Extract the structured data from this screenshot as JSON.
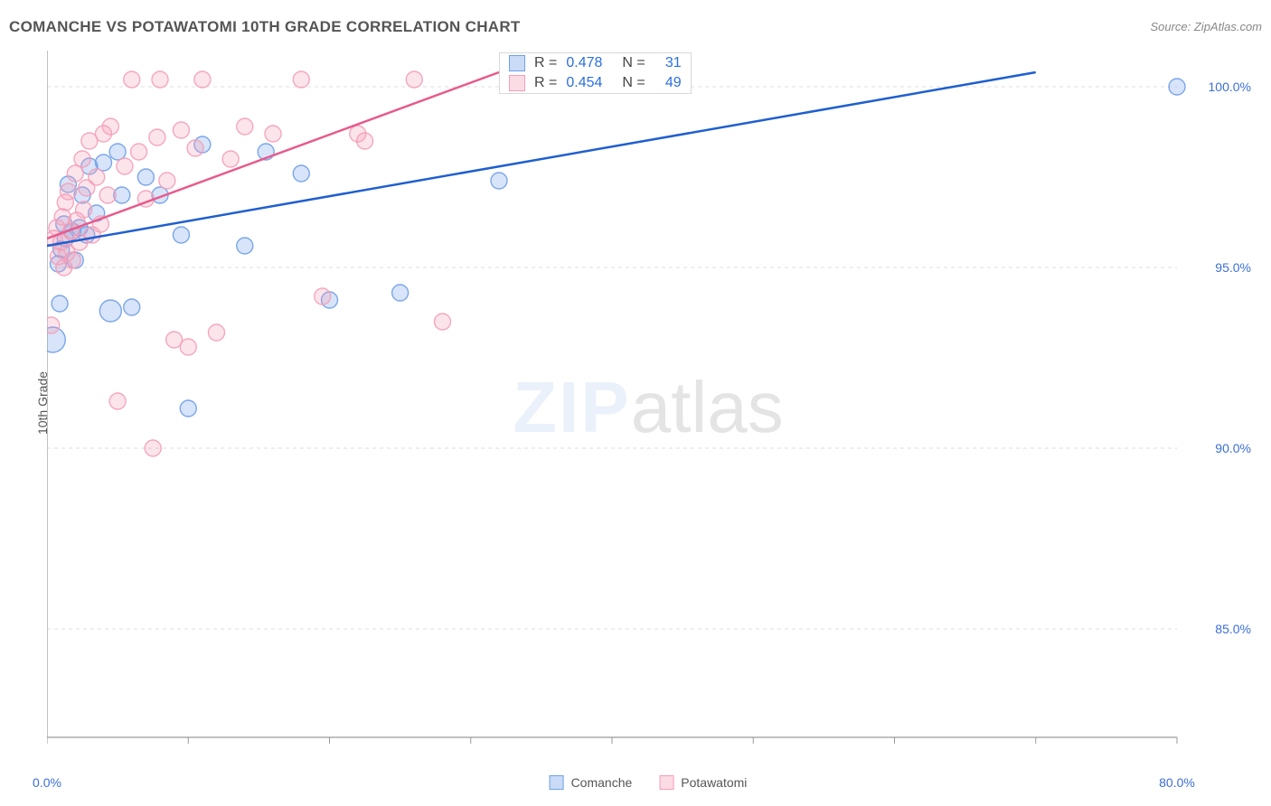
{
  "title": "COMANCHE VS POTAWATOMI 10TH GRADE CORRELATION CHART",
  "source": "Source: ZipAtlas.com",
  "ylabel": "10th Grade",
  "watermark_primary": "ZIP",
  "watermark_secondary": "atlas",
  "chart": {
    "type": "scatter",
    "background_color": "#ffffff",
    "grid_color": "#dcdcdc",
    "axis_color": "#9a9a9a",
    "label_color": "#3b6fd6",
    "xlim": [
      0,
      80
    ],
    "ylim": [
      82,
      101
    ],
    "xticks": [
      0,
      10,
      20,
      30,
      40,
      50,
      60,
      70,
      80
    ],
    "xticks_labeled": [
      0,
      80
    ],
    "xtick_labels": {
      "0": "0.0%",
      "80": "80.0%"
    },
    "yticks": [
      85,
      90,
      95,
      100
    ],
    "ytick_labels": {
      "85": "85.0%",
      "90": "90.0%",
      "95": "95.0%",
      "100": "100.0%"
    },
    "marker_radius": 9,
    "marker_fill_opacity": 0.28,
    "marker_stroke_opacity": 0.9,
    "line_width": 2.5,
    "font_size_labels": 14,
    "font_size_title": 17
  },
  "series": [
    {
      "name": "Comanche",
      "color": "#6f9fe8",
      "line_color": "#1f5fd0",
      "R": "0.478",
      "N": "31",
      "trend": {
        "x1": 0,
        "y1": 95.6,
        "x2": 70,
        "y2": 100.4
      },
      "points": [
        [
          0.4,
          93.0,
          14
        ],
        [
          0.8,
          95.1,
          9
        ],
        [
          0.9,
          94.0,
          9
        ],
        [
          1.0,
          95.5,
          9
        ],
        [
          1.2,
          96.2,
          9
        ],
        [
          1.3,
          95.8,
          9
        ],
        [
          1.5,
          97.3,
          9
        ],
        [
          1.8,
          96.0,
          9
        ],
        [
          2.0,
          95.2,
          9
        ],
        [
          2.3,
          96.1,
          9
        ],
        [
          2.5,
          97.0,
          9
        ],
        [
          2.8,
          95.9,
          9
        ],
        [
          3.0,
          97.8,
          9
        ],
        [
          3.5,
          96.5,
          9
        ],
        [
          4.0,
          97.9,
          9
        ],
        [
          4.5,
          93.8,
          12
        ],
        [
          5.0,
          98.2,
          9
        ],
        [
          5.3,
          97.0,
          9
        ],
        [
          6.0,
          93.9,
          9
        ],
        [
          7.0,
          97.5,
          9
        ],
        [
          8.0,
          97.0,
          9
        ],
        [
          9.5,
          95.9,
          9
        ],
        [
          10.0,
          91.1,
          9
        ],
        [
          11.0,
          98.4,
          9
        ],
        [
          14.0,
          95.6,
          9
        ],
        [
          15.5,
          98.2,
          9
        ],
        [
          18.0,
          97.6,
          9
        ],
        [
          20.0,
          94.1,
          9
        ],
        [
          25.0,
          94.3,
          9
        ],
        [
          32.0,
          97.4,
          9
        ],
        [
          80.0,
          100.0,
          9
        ]
      ]
    },
    {
      "name": "Potawatomi",
      "color": "#f49fb8",
      "line_color": "#e85a8c",
      "R": "0.454",
      "N": "49",
      "trend": {
        "x1": 0,
        "y1": 95.8,
        "x2": 32,
        "y2": 100.4
      },
      "points": [
        [
          0.3,
          93.4,
          9
        ],
        [
          0.5,
          95.8,
          9
        ],
        [
          0.7,
          96.1,
          9
        ],
        [
          0.8,
          95.3,
          9
        ],
        [
          1.0,
          95.7,
          9
        ],
        [
          1.1,
          96.4,
          9
        ],
        [
          1.2,
          95.0,
          9
        ],
        [
          1.3,
          96.8,
          9
        ],
        [
          1.4,
          95.4,
          9
        ],
        [
          1.5,
          97.1,
          9
        ],
        [
          1.7,
          96.0,
          9
        ],
        [
          1.8,
          95.2,
          9
        ],
        [
          2.0,
          97.6,
          9
        ],
        [
          2.1,
          96.3,
          9
        ],
        [
          2.3,
          95.7,
          9
        ],
        [
          2.5,
          98.0,
          9
        ],
        [
          2.6,
          96.6,
          9
        ],
        [
          2.8,
          97.2,
          9
        ],
        [
          3.0,
          98.5,
          9
        ],
        [
          3.2,
          95.9,
          9
        ],
        [
          3.5,
          97.5,
          9
        ],
        [
          3.8,
          96.2,
          9
        ],
        [
          4.0,
          98.7,
          9
        ],
        [
          4.3,
          97.0,
          9
        ],
        [
          4.5,
          98.9,
          9
        ],
        [
          5.0,
          91.3,
          9
        ],
        [
          5.5,
          97.8,
          9
        ],
        [
          6.0,
          100.2,
          9
        ],
        [
          6.5,
          98.2,
          9
        ],
        [
          7.0,
          96.9,
          9
        ],
        [
          7.5,
          90.0,
          9
        ],
        [
          7.8,
          98.6,
          9
        ],
        [
          8.0,
          100.2,
          9
        ],
        [
          8.5,
          97.4,
          9
        ],
        [
          9.0,
          93.0,
          9
        ],
        [
          9.5,
          98.8,
          9
        ],
        [
          10.0,
          92.8,
          9
        ],
        [
          10.5,
          98.3,
          9
        ],
        [
          11.0,
          100.2,
          9
        ],
        [
          12.0,
          93.2,
          9
        ],
        [
          13.0,
          98.0,
          9
        ],
        [
          14.0,
          98.9,
          9
        ],
        [
          16.0,
          98.7,
          9
        ],
        [
          18.0,
          100.2,
          9
        ],
        [
          19.5,
          94.2,
          9
        ],
        [
          22.0,
          98.7,
          9
        ],
        [
          22.5,
          98.5,
          9
        ],
        [
          26.0,
          100.2,
          9
        ],
        [
          28.0,
          93.5,
          9
        ]
      ]
    }
  ],
  "legend": {
    "items": [
      "Comanche",
      "Potawatomi"
    ]
  },
  "stat_box": {
    "rows": [
      {
        "series": 0,
        "R_label": "R =",
        "N_label": "N ="
      },
      {
        "series": 1,
        "R_label": "R =",
        "N_label": "N ="
      }
    ]
  }
}
